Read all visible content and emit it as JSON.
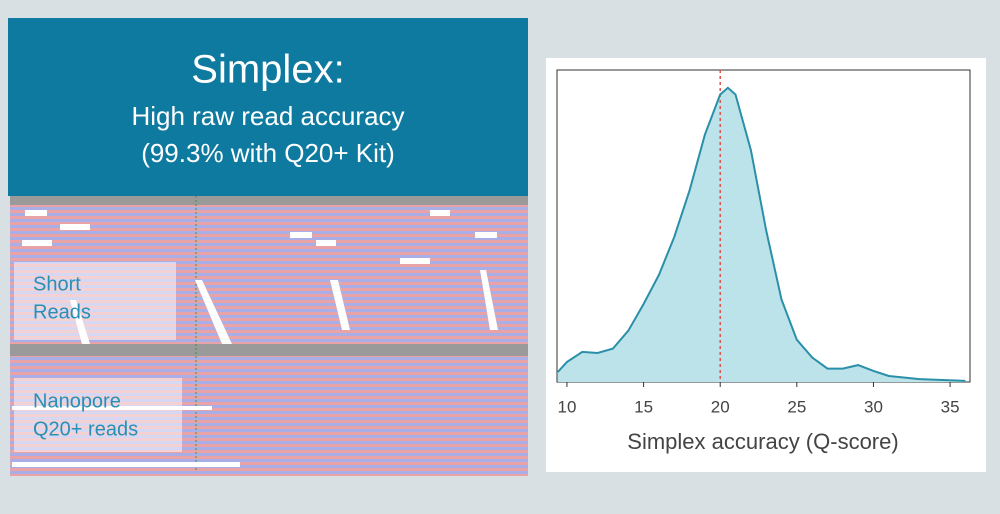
{
  "header": {
    "title": "Simplex:",
    "subtitle_lines": [
      "High raw read accuracy",
      "(99.3% with Q20+ Kit)"
    ]
  },
  "panels": {
    "short_reads": [
      "Short",
      "Reads"
    ],
    "nanopore_reads": [
      "Nanopore",
      "Q20+ reads"
    ]
  },
  "chart_data": {
    "type": "area",
    "x_label": "Simplex accuracy (Q-score)",
    "x": [
      9.4,
      10,
      11,
      12,
      13,
      14,
      15,
      16,
      17,
      18,
      19,
      20,
      20.5,
      21,
      22,
      23,
      24,
      25,
      26,
      27,
      28,
      29,
      30,
      31,
      33,
      36
    ],
    "values": [
      0.0045,
      0.009,
      0.0135,
      0.013,
      0.015,
      0.023,
      0.035,
      0.048,
      0.065,
      0.086,
      0.111,
      0.129,
      0.132,
      0.129,
      0.104,
      0.068,
      0.037,
      0.019,
      0.011,
      0.006,
      0.006,
      0.0076,
      0.005,
      0.0027,
      0.0013,
      0.0005
    ],
    "color": "#2a8fa8",
    "fill": "#bde3ea",
    "reference_x": 20,
    "reference_color": "#e0504a",
    "xlim": [
      9.35,
      36.3
    ],
    "xticks": [
      10,
      15,
      20,
      25,
      30,
      35
    ],
    "ylim": [
      0,
      0.14
    ]
  }
}
